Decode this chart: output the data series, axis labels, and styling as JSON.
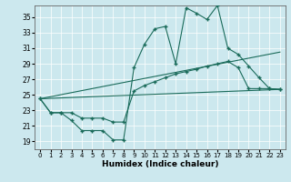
{
  "bg_color": "#cce8ee",
  "line_color": "#1a6b5a",
  "grid_color": "#ffffff",
  "xlabel": "Humidex (Indice chaleur)",
  "xlim": [
    -0.5,
    23.5
  ],
  "ylim": [
    18.0,
    36.5
  ],
  "yticks": [
    19,
    21,
    23,
    25,
    27,
    29,
    31,
    33,
    35
  ],
  "xticks": [
    0,
    1,
    2,
    3,
    4,
    5,
    6,
    7,
    8,
    9,
    10,
    11,
    12,
    13,
    14,
    15,
    16,
    17,
    18,
    19,
    20,
    21,
    22,
    23
  ],
  "line1_x": [
    0,
    1,
    2,
    3,
    4,
    5,
    6,
    7,
    8,
    9,
    10,
    11,
    12,
    13,
    14,
    15,
    16,
    17,
    18,
    19,
    20,
    21,
    22,
    23
  ],
  "line1_y": [
    24.5,
    22.7,
    22.7,
    21.7,
    20.4,
    20.4,
    20.4,
    19.2,
    19.2,
    28.5,
    31.5,
    33.5,
    33.8,
    29.0,
    36.2,
    35.5,
    34.7,
    36.5,
    31.0,
    30.2,
    28.7,
    27.2,
    25.8,
    25.7
  ],
  "line2_x": [
    0,
    1,
    2,
    3,
    4,
    5,
    6,
    7,
    8,
    9,
    10,
    11,
    12,
    13,
    14,
    15,
    16,
    17,
    18,
    19,
    20,
    21,
    22,
    23
  ],
  "line2_y": [
    24.5,
    22.7,
    22.7,
    22.7,
    22.0,
    22.0,
    22.0,
    21.5,
    21.5,
    25.5,
    26.2,
    26.7,
    27.2,
    27.7,
    28.0,
    28.3,
    28.7,
    29.0,
    29.3,
    28.5,
    25.8,
    25.8,
    25.8,
    25.7
  ],
  "line3_x": [
    0,
    23
  ],
  "line3_y": [
    24.5,
    30.5
  ],
  "line4_x": [
    0,
    23
  ],
  "line4_y": [
    24.5,
    25.7
  ]
}
